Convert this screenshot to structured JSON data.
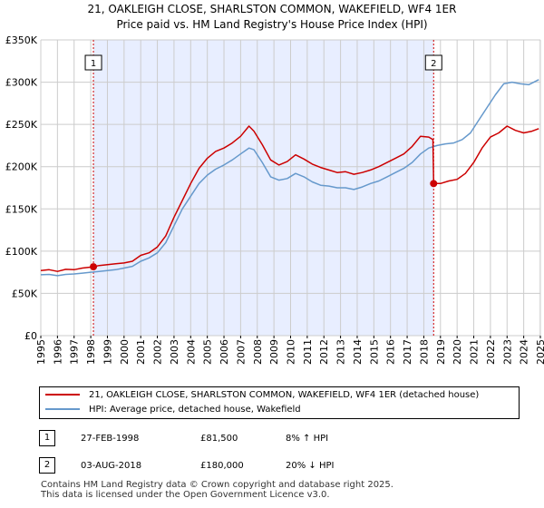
{
  "title_line1": "21, OAKLEIGH CLOSE, SHARLSTON COMMON, WAKEFIELD, WF4 1ER",
  "title_line2": "Price paid vs. HM Land Registry's House Price Index (HPI)",
  "colors": {
    "property": "#cc0000",
    "hpi": "#6699cc",
    "shade": "#e8eeff",
    "marker": "#cc0000"
  },
  "legend": {
    "property": "21, OAKLEIGH CLOSE, SHARLSTON COMMON, WAKEFIELD, WF4 1ER (detached house)",
    "hpi": "HPI: Average price, detached house, Wakefield"
  },
  "sales": [
    {
      "label": "1",
      "date": "27-FEB-1998",
      "price": "£81,500",
      "hpi_note": "8% ↑ HPI"
    },
    {
      "label": "2",
      "date": "03-AUG-2018",
      "price": "£180,000",
      "hpi_note": "20% ↓ HPI"
    }
  ],
  "footer_line1": "Contains HM Land Registry data © Crown copyright and database right 2025.",
  "footer_line2": "This data is licensed under the Open Government Licence v3.0.",
  "chart_data": {
    "type": "line",
    "xlim": [
      1995,
      2025
    ],
    "ylim": [
      0,
      350000
    ],
    "x_ticks": [
      1995,
      1996,
      1997,
      1998,
      1999,
      2000,
      2001,
      2002,
      2003,
      2004,
      2005,
      2006,
      2007,
      2008,
      2009,
      2010,
      2011,
      2012,
      2013,
      2014,
      2015,
      2016,
      2017,
      2018,
      2019,
      2020,
      2021,
      2022,
      2023,
      2024,
      2025
    ],
    "y_ticks": [
      0,
      50000,
      100000,
      150000,
      200000,
      250000,
      300000,
      350000
    ],
    "y_tick_labels": [
      "£0",
      "£50K",
      "£100K",
      "£150K",
      "£200K",
      "£250K",
      "£300K",
      "£350K"
    ],
    "shaded_range": [
      1998.16,
      2018.59
    ],
    "events": [
      {
        "label": "1",
        "x": 1998.16,
        "y": 81500
      },
      {
        "label": "2",
        "x": 2018.59,
        "y": 180000
      }
    ],
    "series": [
      {
        "name": "21, OAKLEIGH CLOSE, SHARLSTON COMMON, WAKEFIELD, WF4 1ER (detached house)",
        "x": [
          1995,
          1995.5,
          1996,
          1996.5,
          1997,
          1997.5,
          1998.16,
          1998.5,
          1999,
          1999.5,
          2000,
          2000.5,
          2001,
          2001.5,
          2002,
          2002.5,
          2003,
          2003.5,
          2004,
          2004.5,
          2005,
          2005.5,
          2006,
          2006.5,
          2007,
          2007.5,
          2007.8,
          2008.3,
          2008.8,
          2009.3,
          2009.8,
          2010.3,
          2010.8,
          2011.3,
          2011.8,
          2012.3,
          2012.8,
          2013.3,
          2013.8,
          2014.3,
          2014.8,
          2015.3,
          2015.8,
          2016.3,
          2016.8,
          2017.3,
          2017.8,
          2018.3,
          2018.55,
          2018.59,
          2019,
          2019.5,
          2020,
          2020.5,
          2021,
          2021.5,
          2022,
          2022.5,
          2023,
          2023.5,
          2024,
          2024.5,
          2024.9
        ],
        "values": [
          77000,
          78000,
          76000,
          78500,
          78000,
          80000,
          81500,
          83000,
          84000,
          85000,
          86000,
          88000,
          95000,
          98000,
          105000,
          118000,
          140000,
          160000,
          180000,
          198000,
          210000,
          218000,
          222000,
          228000,
          236000,
          248000,
          242000,
          226000,
          208000,
          202000,
          206000,
          214000,
          209000,
          203000,
          199000,
          196000,
          193000,
          194000,
          191000,
          193000,
          196000,
          200000,
          205000,
          210000,
          215000,
          224000,
          236000,
          235000,
          232000,
          180000,
          180000,
          183000,
          185000,
          192000,
          205000,
          222000,
          235000,
          240000,
          248000,
          243000,
          240000,
          242000,
          245000
        ]
      },
      {
        "name": "HPI: Average price, detached house, Wakefield",
        "x": [
          1995,
          1995.5,
          1996,
          1996.5,
          1997,
          1997.5,
          1998,
          1998.5,
          1999,
          1999.5,
          2000,
          2000.5,
          2001,
          2001.5,
          2002,
          2002.5,
          2003,
          2003.5,
          2004,
          2004.5,
          2005,
          2005.5,
          2006,
          2006.5,
          2007,
          2007.5,
          2007.8,
          2008.3,
          2008.8,
          2009.3,
          2009.8,
          2010.3,
          2010.8,
          2011.3,
          2011.8,
          2012.3,
          2012.8,
          2013.3,
          2013.8,
          2014.3,
          2014.8,
          2015.3,
          2015.8,
          2016.3,
          2016.8,
          2017.3,
          2017.8,
          2018.3,
          2018.8,
          2019.3,
          2019.8,
          2020.3,
          2020.8,
          2021.3,
          2021.8,
          2022.3,
          2022.8,
          2023.3,
          2023.8,
          2024.3,
          2024.9
        ],
        "values": [
          72000,
          72500,
          71000,
          72500,
          73000,
          74000,
          75000,
          76000,
          77000,
          78000,
          80000,
          82000,
          88000,
          92000,
          98000,
          110000,
          130000,
          150000,
          165000,
          180000,
          190000,
          197000,
          202000,
          208000,
          215000,
          222000,
          220000,
          205000,
          188000,
          184000,
          186000,
          192000,
          188000,
          182000,
          178000,
          177000,
          175000,
          175000,
          173000,
          176000,
          180000,
          183000,
          188000,
          193000,
          198000,
          205000,
          215000,
          222000,
          225000,
          227000,
          228000,
          232000,
          240000,
          255000,
          270000,
          285000,
          298000,
          300000,
          298000,
          297000,
          303000
        ]
      }
    ]
  }
}
